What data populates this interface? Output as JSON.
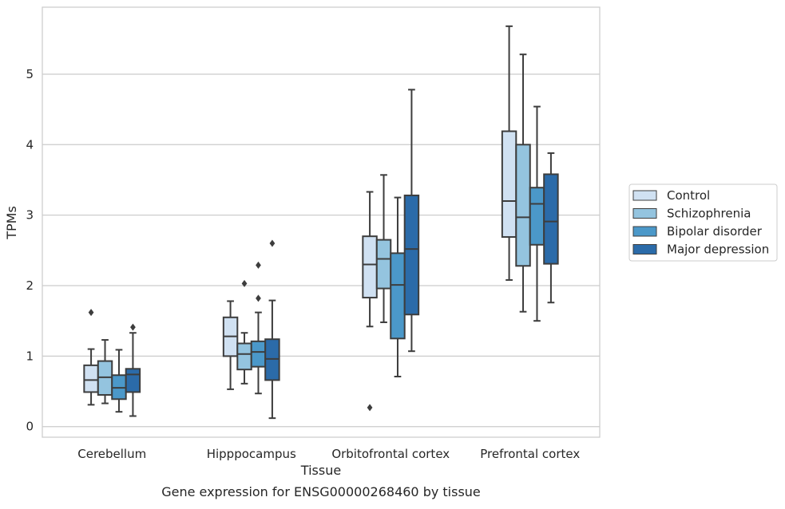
{
  "chart_data": {
    "type": "box",
    "caption": "Gene expression for ENSG00000268460 by tissue",
    "xlabel": "Tissue",
    "ylabel": "TPMs",
    "ylim": [
      -0.15,
      5.95
    ],
    "yticks": [
      0,
      1,
      2,
      3,
      4,
      5
    ],
    "grid": true,
    "legend_position": "right",
    "categories": [
      "Cerebellum",
      "Hipppocampus",
      "Orbitofrontal cortex",
      "Prefrontal cortex"
    ],
    "series": [
      {
        "name": "Control",
        "color": "#d0e1f2",
        "boxes": [
          {
            "whislo": 0.31,
            "q1": 0.49,
            "med": 0.66,
            "q3": 0.87,
            "whishi": 1.1,
            "fliers": [
              1.62
            ]
          },
          {
            "whislo": 0.53,
            "q1": 1.0,
            "med": 1.28,
            "q3": 1.55,
            "whishi": 1.78,
            "fliers": []
          },
          {
            "whislo": 1.42,
            "q1": 1.83,
            "med": 2.3,
            "q3": 2.7,
            "whishi": 3.33,
            "fliers": [
              0.27
            ]
          },
          {
            "whislo": 2.08,
            "q1": 2.69,
            "med": 3.2,
            "q3": 4.19,
            "whishi": 5.68,
            "fliers": []
          }
        ]
      },
      {
        "name": "Schizophrenia",
        "color": "#94c4df",
        "boxes": [
          {
            "whislo": 0.33,
            "q1": 0.45,
            "med": 0.7,
            "q3": 0.93,
            "whishi": 1.23,
            "fliers": []
          },
          {
            "whislo": 0.61,
            "q1": 0.81,
            "med": 1.03,
            "q3": 1.18,
            "whishi": 1.33,
            "fliers": [
              2.03
            ]
          },
          {
            "whislo": 1.48,
            "q1": 1.96,
            "med": 2.38,
            "q3": 2.65,
            "whishi": 3.57,
            "fliers": []
          },
          {
            "whislo": 1.63,
            "q1": 2.28,
            "med": 2.97,
            "q3": 4.0,
            "whishi": 5.28,
            "fliers": []
          }
        ]
      },
      {
        "name": "Bipolar disorder",
        "color": "#4b98c9",
        "boxes": [
          {
            "whislo": 0.21,
            "q1": 0.39,
            "med": 0.55,
            "q3": 0.73,
            "whishi": 1.09,
            "fliers": []
          },
          {
            "whislo": 0.47,
            "q1": 0.85,
            "med": 1.06,
            "q3": 1.21,
            "whishi": 1.62,
            "fliers": [
              2.29,
              1.82
            ]
          },
          {
            "whislo": 0.71,
            "q1": 1.25,
            "med": 2.01,
            "q3": 2.46,
            "whishi": 3.25,
            "fliers": []
          },
          {
            "whislo": 1.5,
            "q1": 2.58,
            "med": 3.16,
            "q3": 3.39,
            "whishi": 4.54,
            "fliers": []
          }
        ]
      },
      {
        "name": "Major depression",
        "color": "#2b6ba9",
        "boxes": [
          {
            "whislo": 0.15,
            "q1": 0.49,
            "med": 0.74,
            "q3": 0.82,
            "whishi": 1.33,
            "fliers": [
              1.41
            ]
          },
          {
            "whislo": 0.12,
            "q1": 0.66,
            "med": 0.96,
            "q3": 1.24,
            "whishi": 1.79,
            "fliers": [
              2.6
            ]
          },
          {
            "whislo": 1.07,
            "q1": 1.59,
            "med": 2.52,
            "q3": 3.28,
            "whishi": 4.78,
            "fliers": []
          },
          {
            "whislo": 1.76,
            "q1": 2.31,
            "med": 2.91,
            "q3": 3.58,
            "whishi": 3.88,
            "fliers": []
          }
        ]
      }
    ]
  }
}
